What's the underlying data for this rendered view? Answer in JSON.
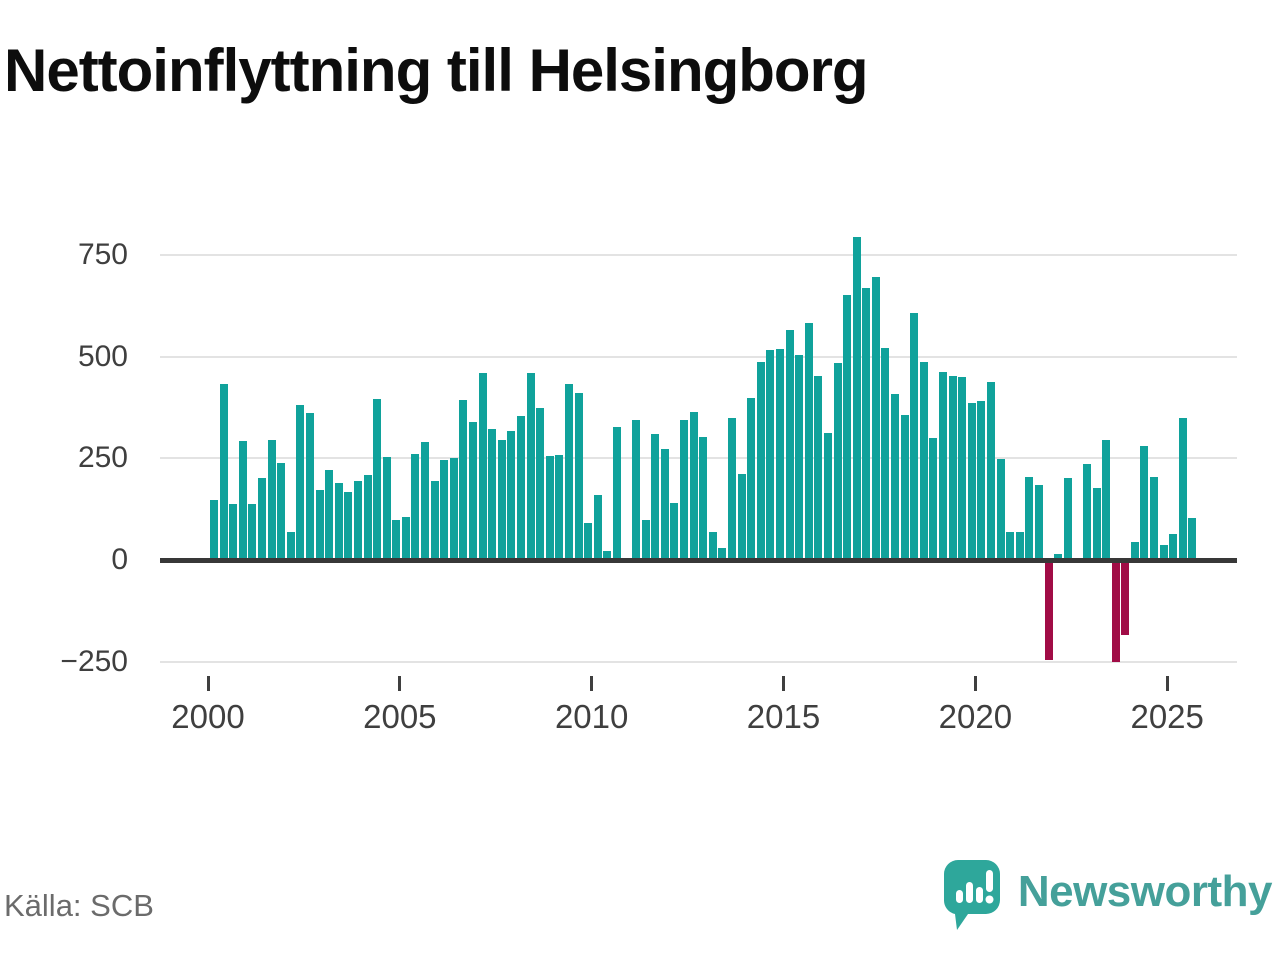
{
  "title": "Nettoinflyttning till Helsingborg",
  "source": "Källa: SCB",
  "brand": {
    "name": "Newsworthy"
  },
  "colors": {
    "positive": "#10a29b",
    "negative": "#a10c46",
    "axis": "#383838",
    "grid": "#e3e3e3",
    "text": "#3f3f3f",
    "title": "#0d0d0d",
    "source": "#6b6b6b",
    "brand_teal": "#45a09a",
    "brand_bubble": "#2ea79b"
  },
  "chart_data": {
    "type": "bar",
    "title": "Nettoinflyttning till Helsingborg",
    "xlabel": "",
    "ylabel": "",
    "frequency": "quarterly",
    "start_period": "2000Q1",
    "end_period": "2025Q3",
    "ylim": [
      -300,
      820
    ],
    "grid": true,
    "legend": false,
    "y_ticks": [
      750,
      500,
      250,
      0,
      -250
    ],
    "y_tick_labels": [
      "750",
      "500",
      "250",
      "0",
      "−250"
    ],
    "x_tick_years": [
      2000,
      2005,
      2010,
      2015,
      2020,
      2025
    ],
    "x_tick_labels": [
      "2000",
      "2005",
      "2010",
      "2015",
      "2020",
      "2025"
    ],
    "values": [
      148,
      433,
      139,
      293,
      139,
      202,
      296,
      239,
      70,
      381,
      362,
      172,
      222,
      190,
      167,
      195,
      209,
      395,
      254,
      98,
      105,
      260,
      290,
      194,
      247,
      250,
      393,
      339,
      459,
      322,
      295,
      318,
      355,
      461,
      373,
      256,
      258,
      433,
      411,
      90,
      160,
      23,
      328,
      4,
      344,
      98,
      310,
      272,
      141,
      344,
      365,
      302,
      70,
      30,
      348,
      211,
      398,
      488,
      516,
      520,
      565,
      505,
      582,
      452,
      313,
      484,
      651,
      795,
      669,
      696,
      521,
      407,
      356,
      608,
      488,
      300,
      462,
      453,
      449,
      385,
      392,
      438,
      249,
      68,
      69,
      204,
      185,
      -245,
      15,
      201,
      2,
      235,
      178,
      295,
      -250,
      -185,
      45,
      281,
      205,
      38,
      65,
      348,
      104
    ]
  }
}
